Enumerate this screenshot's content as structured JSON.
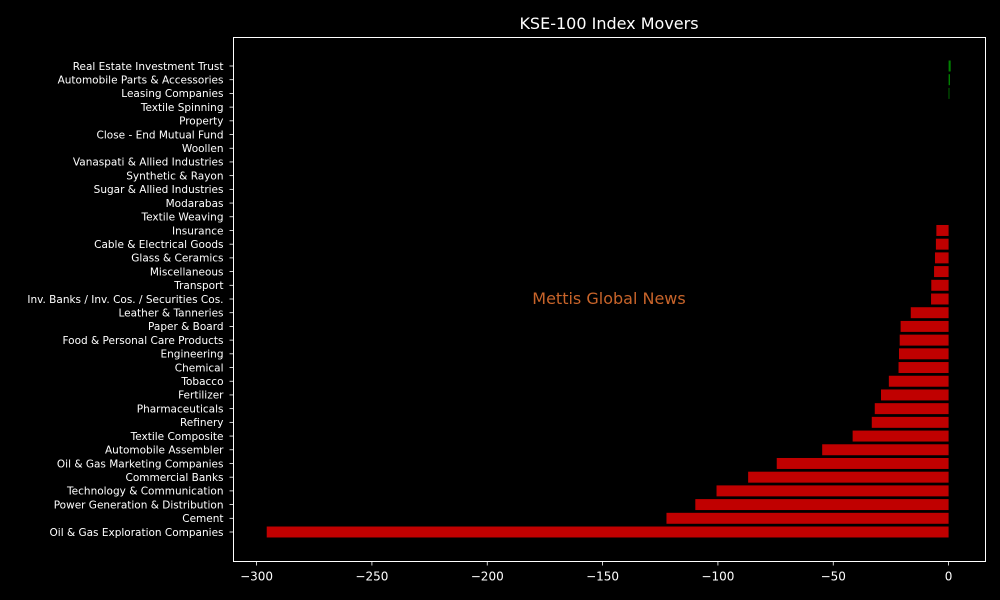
{
  "chart_data": {
    "type": "bar",
    "orientation": "horizontal",
    "title": "KSE-100 Index Movers",
    "watermark": "Mettis Global News",
    "xlabel": "",
    "ylabel": "",
    "xlim": [
      -310,
      16
    ],
    "xticks": [
      -300,
      -250,
      -200,
      -150,
      -100,
      -50,
      0
    ],
    "xtick_labels": [
      "−300",
      "−250",
      "−200",
      "−150",
      "−100",
      "−50",
      "0"
    ],
    "grid": false,
    "colors": {
      "positive": "#008000",
      "negative": "#c00000",
      "background": "#000000",
      "text": "#ffffff",
      "watermark": "#c8642a"
    },
    "categories": [
      "Oil & Gas Exploration Companies",
      "Cement",
      "Power Generation & Distribution",
      "Technology & Communication",
      "Commercial Banks",
      "Oil & Gas Marketing Companies",
      "Automobile Assembler",
      "Textile Composite",
      "Refinery",
      "Pharmaceuticals",
      "Fertilizer",
      "Tobacco",
      "Chemical",
      "Engineering",
      "Food & Personal Care Products",
      "Paper & Board",
      "Leather & Tanneries",
      "Inv. Banks / Inv. Cos. / Securities Cos.",
      "Transport",
      "Miscellaneous",
      "Glass & Ceramics",
      "Cable & Electrical Goods",
      "Insurance",
      "Textile Weaving",
      "Modarabas",
      "Sugar & Allied Industries",
      "Synthetic & Rayon",
      "Vanaspati & Allied Industries",
      "Woollen",
      "Close - End Mutual Fund",
      "Property",
      "Textile Spinning",
      "Leasing Companies",
      "Automobile Parts & Accessories",
      "Real Estate Investment Trust"
    ],
    "values": [
      -295.6,
      -122.3,
      -109.8,
      -100.6,
      -86.9,
      -74.5,
      -54.8,
      -41.6,
      -33.3,
      -32.0,
      -29.3,
      -25.9,
      -21.7,
      -21.5,
      -21.2,
      -20.8,
      -16.4,
      -7.6,
      -7.5,
      -6.3,
      -5.9,
      -5.5,
      -5.3,
      0,
      0,
      0,
      0,
      0,
      0,
      0,
      0,
      0,
      0.3,
      0.6,
      0.9
    ]
  }
}
